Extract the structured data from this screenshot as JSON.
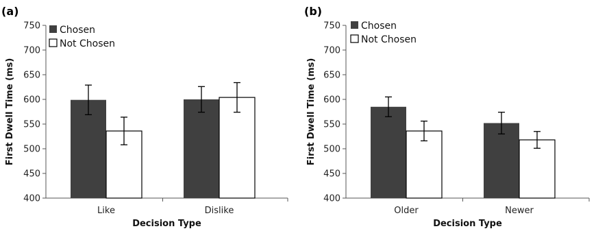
{
  "chart_data": [
    {
      "type": "bar",
      "panel_label": "(a)",
      "categories": [
        "Like",
        "Dislike"
      ],
      "series": [
        {
          "name": "Chosen",
          "color": "#404040",
          "values": [
            599,
            600
          ],
          "error": [
            30,
            26
          ]
        },
        {
          "name": "Not Chosen",
          "color": "#ffffff",
          "values": [
            536,
            604
          ],
          "error": [
            28,
            30
          ]
        }
      ],
      "xlabel": "Decision Type",
      "ylabel": "First Dwell Time (ms)",
      "ylim": [
        400,
        750
      ],
      "yticks": [
        400,
        450,
        500,
        550,
        600,
        650,
        700,
        750
      ],
      "grid": false,
      "legend": "top-left"
    },
    {
      "type": "bar",
      "panel_label": "(b)",
      "categories": [
        "Older",
        "Newer"
      ],
      "series": [
        {
          "name": "Chosen",
          "color": "#404040",
          "values": [
            585,
            552
          ],
          "error": [
            20,
            22
          ]
        },
        {
          "name": "Not Chosen",
          "color": "#ffffff",
          "values": [
            536,
            518
          ],
          "error": [
            20,
            17
          ]
        }
      ],
      "xlabel": "Decision Type",
      "ylabel": "First Dwell Time (ms)",
      "ylim": [
        400,
        750
      ],
      "yticks": [
        400,
        450,
        500,
        550,
        600,
        650,
        700,
        750
      ],
      "grid": false,
      "legend": "top-left"
    }
  ]
}
